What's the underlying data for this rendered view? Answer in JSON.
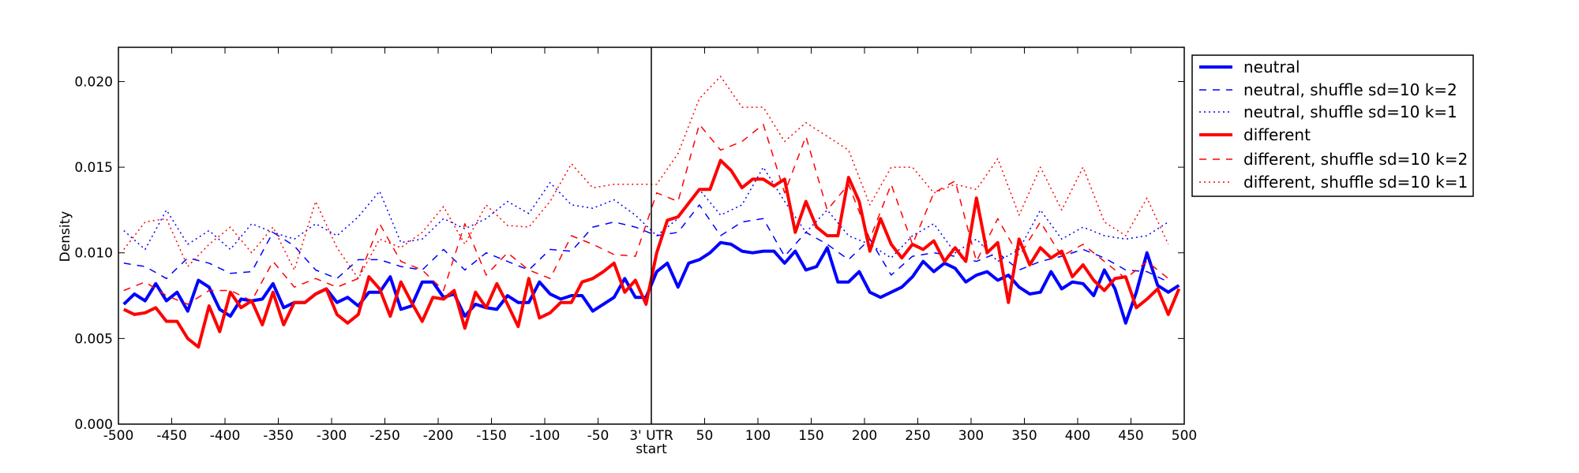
{
  "chart_data": {
    "type": "line",
    "title": "",
    "xlabel": "start",
    "ylabel": "Density",
    "xlim": [
      -500,
      500
    ],
    "ylim": [
      0,
      0.022
    ],
    "grid": false,
    "legend_placement": "outside-right-top",
    "vline_at": 0,
    "xticks": [
      {
        "v": -500,
        "label": "-500"
      },
      {
        "v": -450,
        "label": "-450"
      },
      {
        "v": -400,
        "label": "-400"
      },
      {
        "v": -350,
        "label": "-350"
      },
      {
        "v": -300,
        "label": "-300"
      },
      {
        "v": -250,
        "label": "-250"
      },
      {
        "v": -200,
        "label": "-200"
      },
      {
        "v": -150,
        "label": "-150"
      },
      {
        "v": -100,
        "label": "-100"
      },
      {
        "v": -50,
        "label": "-50"
      },
      {
        "v": 0,
        "label": "3' UTR"
      },
      {
        "v": 50,
        "label": "50"
      },
      {
        "v": 100,
        "label": "100"
      },
      {
        "v": 150,
        "label": "150"
      },
      {
        "v": 200,
        "label": "200"
      },
      {
        "v": 250,
        "label": "250"
      },
      {
        "v": 300,
        "label": "300"
      },
      {
        "v": 350,
        "label": "350"
      },
      {
        "v": 400,
        "label": "400"
      },
      {
        "v": 450,
        "label": "450"
      },
      {
        "v": 500,
        "label": "500"
      }
    ],
    "yticks": [
      {
        "v": 0,
        "label": "0.000"
      },
      {
        "v": 0.005,
        "label": "0.005"
      },
      {
        "v": 0.01,
        "label": "0.010"
      },
      {
        "v": 0.015,
        "label": "0.015"
      },
      {
        "v": 0.02,
        "label": "0.020"
      }
    ],
    "series": [
      {
        "name": "neutral",
        "color": "#0000ff",
        "style": "solid",
        "width": "thick",
        "x_start": -495,
        "x_step": 10,
        "values": [
          0.007,
          0.0076,
          0.0072,
          0.0082,
          0.0072,
          0.0077,
          0.0066,
          0.0084,
          0.008,
          0.0067,
          0.0063,
          0.0073,
          0.0072,
          0.0073,
          0.0082,
          0.0068,
          0.0071,
          0.0071,
          0.0076,
          0.0079,
          0.0071,
          0.0074,
          0.0069,
          0.0077,
          0.0077,
          0.0086,
          0.0067,
          0.0069,
          0.0083,
          0.0083,
          0.0074,
          0.0076,
          0.0063,
          0.007,
          0.0068,
          0.0067,
          0.0075,
          0.0071,
          0.0071,
          0.0083,
          0.0076,
          0.0073,
          0.0075,
          0.0075,
          0.0066,
          0.007,
          0.0074,
          0.0085,
          0.0074,
          0.0074,
          0.0089,
          0.0094,
          0.008,
          0.0094,
          0.0096,
          0.01,
          0.0106,
          0.0105,
          0.0101,
          0.01,
          0.0101,
          0.0101,
          0.0094,
          0.0101,
          0.009,
          0.0092,
          0.0103,
          0.0083,
          0.0083,
          0.0089,
          0.0077,
          0.0074,
          0.0077,
          0.008,
          0.0086,
          0.0095,
          0.0089,
          0.0094,
          0.0091,
          0.0083,
          0.0087,
          0.0089,
          0.0084,
          0.0087,
          0.008,
          0.0076,
          0.0077,
          0.0089,
          0.0079,
          0.0083,
          0.0082,
          0.0075,
          0.009,
          0.0079,
          0.0059,
          0.0077,
          0.01,
          0.0081,
          0.0077,
          0.0081
        ]
      },
      {
        "name": "neutral, shuffle sd=10 k=2",
        "color": "#0000ff",
        "style": "dashed",
        "width": "thin",
        "x_start": -495,
        "x_step": 20,
        "values": [
          0.0094,
          0.0092,
          0.0085,
          0.0097,
          0.0094,
          0.0088,
          0.0089,
          0.0112,
          0.0104,
          0.009,
          0.0085,
          0.0096,
          0.0096,
          0.0092,
          0.009,
          0.0102,
          0.009,
          0.01,
          0.0095,
          0.009,
          0.0102,
          0.0101,
          0.0115,
          0.0118,
          0.0115,
          0.011,
          0.0112,
          0.0128,
          0.011,
          0.0118,
          0.012,
          0.0098,
          0.0112,
          0.0105,
          0.0096,
          0.0108,
          0.0087,
          0.0098,
          0.01,
          0.0098,
          0.0095,
          0.01,
          0.009,
          0.0095,
          0.0098,
          0.0102,
          0.0097,
          0.009,
          0.0089,
          0.0083
        ]
      },
      {
        "name": "neutral, shuffle sd=10 k=1",
        "color": "#0000ff",
        "style": "dotted",
        "width": "thin",
        "x_start": -495,
        "x_step": 20,
        "values": [
          0.0113,
          0.0102,
          0.0125,
          0.0105,
          0.0113,
          0.0102,
          0.0117,
          0.0112,
          0.0108,
          0.0117,
          0.011,
          0.0121,
          0.0136,
          0.0106,
          0.0108,
          0.012,
          0.0114,
          0.012,
          0.013,
          0.0123,
          0.0141,
          0.0128,
          0.0126,
          0.0131,
          0.0122,
          0.011,
          0.012,
          0.0137,
          0.0122,
          0.0128,
          0.015,
          0.013,
          0.0112,
          0.0125,
          0.011,
          0.0105,
          0.0097,
          0.011,
          0.0117,
          0.01,
          0.0108,
          0.0095,
          0.0102,
          0.0125,
          0.0108,
          0.0115,
          0.011,
          0.0108,
          0.011,
          0.0118
        ]
      },
      {
        "name": "different",
        "color": "#ff0000",
        "style": "solid",
        "width": "thick",
        "x_start": -495,
        "x_step": 10,
        "values": [
          0.0067,
          0.0064,
          0.0065,
          0.0068,
          0.006,
          0.006,
          0.005,
          0.0045,
          0.0069,
          0.0054,
          0.0077,
          0.0068,
          0.0072,
          0.0058,
          0.0077,
          0.0058,
          0.0071,
          0.0071,
          0.0076,
          0.0079,
          0.0064,
          0.0059,
          0.0064,
          0.0086,
          0.0079,
          0.0063,
          0.0083,
          0.0071,
          0.006,
          0.0074,
          0.0073,
          0.0078,
          0.0056,
          0.0077,
          0.0068,
          0.0082,
          0.007,
          0.0057,
          0.0085,
          0.0062,
          0.0065,
          0.0071,
          0.0071,
          0.0083,
          0.0085,
          0.0089,
          0.0094,
          0.0077,
          0.0084,
          0.007,
          0.01,
          0.0119,
          0.0121,
          0.0129,
          0.0137,
          0.0137,
          0.0154,
          0.0148,
          0.0138,
          0.0143,
          0.0143,
          0.0139,
          0.0143,
          0.0112,
          0.013,
          0.0115,
          0.011,
          0.011,
          0.0144,
          0.013,
          0.0101,
          0.012,
          0.0105,
          0.0097,
          0.0105,
          0.0102,
          0.0107,
          0.0095,
          0.0103,
          0.0095,
          0.0132,
          0.01,
          0.0106,
          0.0071,
          0.0108,
          0.0093,
          0.0103,
          0.0097,
          0.0101,
          0.0086,
          0.0093,
          0.0084,
          0.0078,
          0.0085,
          0.0086,
          0.0068,
          0.0073,
          0.0079,
          0.0064,
          0.0079
        ]
      },
      {
        "name": "different, shuffle sd=10 k=2",
        "color": "#ff0000",
        "style": "dashed",
        "width": "thin",
        "x_start": -495,
        "x_step": 20,
        "values": [
          0.0078,
          0.0083,
          0.0075,
          0.007,
          0.0078,
          0.0078,
          0.0072,
          0.0095,
          0.008,
          0.0085,
          0.008,
          0.0085,
          0.0117,
          0.0095,
          0.009,
          0.0078,
          0.0117,
          0.0087,
          0.01,
          0.009,
          0.0085,
          0.011,
          0.0105,
          0.0099,
          0.0098,
          0.0135,
          0.013,
          0.0175,
          0.016,
          0.0165,
          0.0175,
          0.0135,
          0.0168,
          0.0125,
          0.014,
          0.0108,
          0.014,
          0.0105,
          0.0135,
          0.0142,
          0.0095,
          0.012,
          0.0098,
          0.0118,
          0.0098,
          0.0105,
          0.0095,
          0.0085,
          0.0095,
          0.0085
        ]
      },
      {
        "name": "different, shuffle sd=10 k=1",
        "color": "#ff0000",
        "style": "dotted",
        "width": "thin",
        "x_start": -495,
        "x_step": 20,
        "values": [
          0.0102,
          0.0118,
          0.012,
          0.0092,
          0.0105,
          0.0115,
          0.01,
          0.0115,
          0.009,
          0.013,
          0.0103,
          0.0085,
          0.0108,
          0.0103,
          0.0112,
          0.0127,
          0.0105,
          0.0128,
          0.0116,
          0.0115,
          0.013,
          0.0152,
          0.0138,
          0.014,
          0.014,
          0.014,
          0.0158,
          0.019,
          0.0203,
          0.0185,
          0.0185,
          0.0165,
          0.0176,
          0.0168,
          0.016,
          0.0128,
          0.015,
          0.015,
          0.0135,
          0.014,
          0.0137,
          0.0155,
          0.0122,
          0.015,
          0.0125,
          0.015,
          0.0118,
          0.011,
          0.0132,
          0.0105
        ]
      }
    ]
  }
}
